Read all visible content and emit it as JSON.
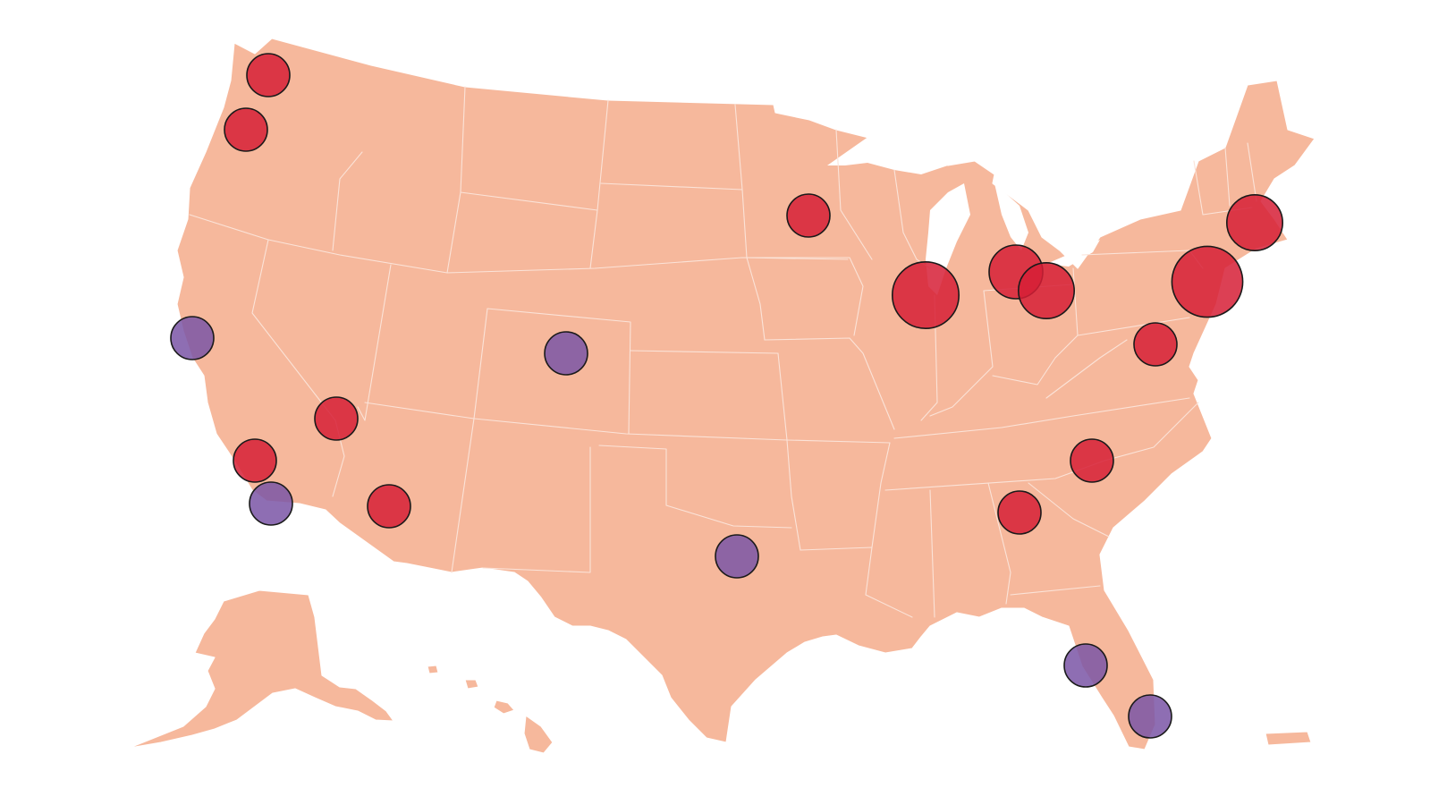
{
  "map": {
    "land_color": "#f6b89c",
    "border_color": "#fbe3d8",
    "background": "#ffffff"
  },
  "categories": {
    "red": {
      "color": "#d61f36"
    },
    "purple": {
      "color": "#7a55a6"
    }
  },
  "markers": [
    {
      "id": "seattle",
      "category": "red",
      "size": 1.0
    },
    {
      "id": "portland",
      "category": "red",
      "size": 1.0
    },
    {
      "id": "san-francisco",
      "category": "purple",
      "size": 1.0
    },
    {
      "id": "las-vegas",
      "category": "red",
      "size": 1.0
    },
    {
      "id": "los-angeles",
      "category": "red",
      "size": 1.0
    },
    {
      "id": "san-diego",
      "category": "purple",
      "size": 1.0
    },
    {
      "id": "phoenix",
      "category": "red",
      "size": 1.0
    },
    {
      "id": "denver",
      "category": "purple",
      "size": 1.0
    },
    {
      "id": "dallas",
      "category": "purple",
      "size": 1.0
    },
    {
      "id": "minneapolis",
      "category": "red",
      "size": 1.0
    },
    {
      "id": "chicago",
      "category": "red",
      "size": 1.55
    },
    {
      "id": "detroit",
      "category": "red",
      "size": 1.25
    },
    {
      "id": "cleveland",
      "category": "red",
      "size": 1.3
    },
    {
      "id": "washington-dc",
      "category": "red",
      "size": 1.0
    },
    {
      "id": "new-york",
      "category": "red",
      "size": 1.65
    },
    {
      "id": "boston",
      "category": "red",
      "size": 1.3
    },
    {
      "id": "charlotte",
      "category": "red",
      "size": 1.0
    },
    {
      "id": "atlanta",
      "category": "red",
      "size": 1.0
    },
    {
      "id": "tampa",
      "category": "purple",
      "size": 1.0
    },
    {
      "id": "miami",
      "category": "purple",
      "size": 1.0
    }
  ]
}
